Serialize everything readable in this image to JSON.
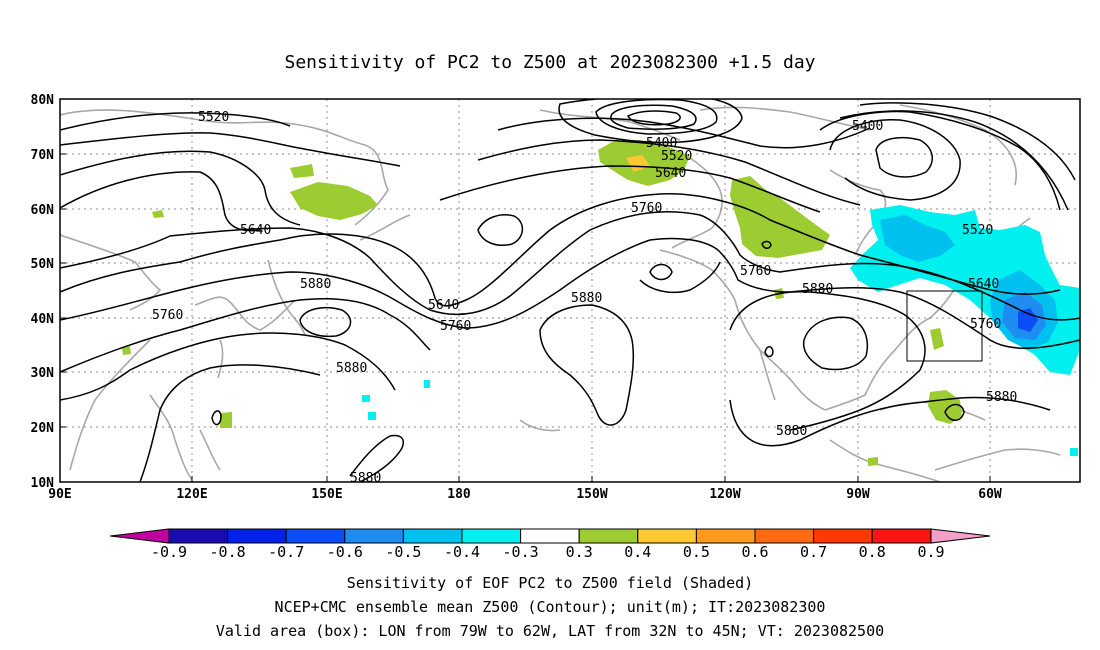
{
  "title": "Sensitivity of PC2 to Z500 at 2023082300 +1.5 day",
  "map": {
    "lon_ticks": [
      "90E",
      "120E",
      "150E",
      "180",
      "150W",
      "120W",
      "90W",
      "60W"
    ],
    "lat_ticks": [
      "80N",
      "70N",
      "60N",
      "50N",
      "40N",
      "30N",
      "20N",
      "10N"
    ],
    "contour_labels": [
      "5520",
      "5400",
      "5520",
      "5640",
      "5400",
      "5760",
      "5640",
      "5520",
      "5640",
      "5880",
      "5760",
      "5760",
      "5640",
      "5880",
      "5760",
      "5880",
      "5880",
      "5760",
      "5880",
      "5880",
      "5880"
    ],
    "valid_box": {
      "lon_from": "79W",
      "lon_to": "62W",
      "lat_from": "32N",
      "lat_to": "45N"
    }
  },
  "colorbar": {
    "labels": [
      "-0.9",
      "-0.8",
      "-0.7",
      "-0.6",
      "-0.5",
      "-0.4",
      "-0.3",
      "0.3",
      "0.4",
      "0.5",
      "0.6",
      "0.7",
      "0.8",
      "0.9"
    ],
    "low_end_color": "#c000a0",
    "high_end_color": "#f5a0c8",
    "colors": [
      "#1a0ab0",
      "#0022e8",
      "#0a4cf5",
      "#1e8cf0",
      "#00c0f0",
      "#00f0f0",
      "#ffffff",
      "#9ccc32",
      "#ffc830",
      "#ff9a1e",
      "#ff6a10",
      "#ff3800",
      "#ff1414"
    ]
  },
  "footer": [
    "Sensitivity of EOF PC2 to Z500 field (Shaded)",
    "NCEP+CMC ensemble mean Z500 (Contour); unit(m); IT:2023082300",
    "Valid area (box): LON from 79W to 62W, LAT from 32N to 45N; VT: 2023082500"
  ]
}
